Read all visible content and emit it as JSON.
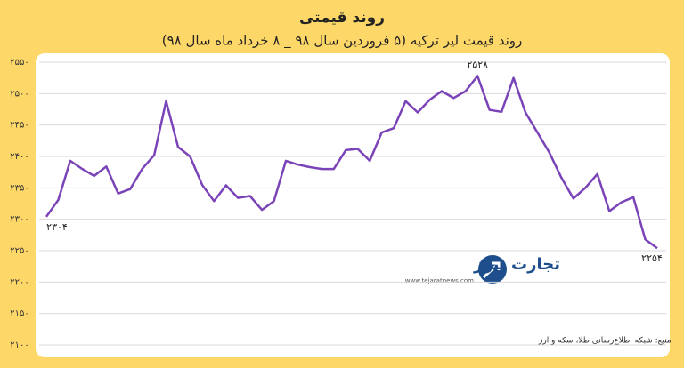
{
  "chart_data": {
    "type": "line",
    "title": "روند قیمتی",
    "subtitle": "روند قیمت لیر ترکیه (۵ فروردین سال ۹۸ _ ۸ خرداد ماه سال ۹۸)",
    "source": "منبع: شبکه اطلاع‌رسانی طلا، سکه و ارز",
    "brand": "تجارت نیوز",
    "brand_url": "www.tejaratnews.com",
    "color": "#7a44b8",
    "grid": true,
    "ylim": [
      2100,
      2550
    ],
    "yticks": [
      {
        "value": 2100,
        "label": "۲۱۰۰"
      },
      {
        "value": 2150,
        "label": "۲۱۵۰"
      },
      {
        "value": 2200,
        "label": "۲۲۰۰"
      },
      {
        "value": 2250,
        "label": "۲۲۵۰"
      },
      {
        "value": 2300,
        "label": "۲۳۰۰"
      },
      {
        "value": 2350,
        "label": "۲۳۵۰"
      },
      {
        "value": 2400,
        "label": "۲۴۰۰"
      },
      {
        "value": 2450,
        "label": "۲۴۵۰"
      },
      {
        "value": 2500,
        "label": "۲۵۰۰"
      },
      {
        "value": 2550,
        "label": "۲۵۵۰"
      }
    ],
    "values": [
      2304,
      2331,
      2393,
      2380,
      2369,
      2384,
      2341,
      2348,
      2380,
      2402,
      2488,
      2415,
      2400,
      2355,
      2329,
      2354,
      2334,
      2337,
      2315,
      2329,
      2393,
      2387,
      2383,
      2380,
      2380,
      2410,
      2412,
      2393,
      2438,
      2445,
      2488,
      2470,
      2490,
      2504,
      2493,
      2504,
      2528,
      2474,
      2471,
      2525,
      2470,
      2438,
      2406,
      2366,
      2333,
      2350,
      2372,
      2313,
      2327,
      2335,
      2268,
      2254
    ],
    "value_labels": [
      "۲۳۰۴",
      null,
      null,
      null,
      null,
      null,
      null,
      null,
      null,
      null,
      null,
      null,
      null,
      null,
      null,
      null,
      null,
      null,
      null,
      null,
      null,
      null,
      null,
      null,
      null,
      null,
      null,
      null,
      null,
      null,
      null,
      null,
      null,
      null,
      null,
      null,
      "۲۵۲۸",
      null,
      null,
      null,
      null,
      null,
      null,
      null,
      null,
      null,
      null,
      null,
      null,
      null,
      null,
      "۲۲۵۴"
    ]
  }
}
